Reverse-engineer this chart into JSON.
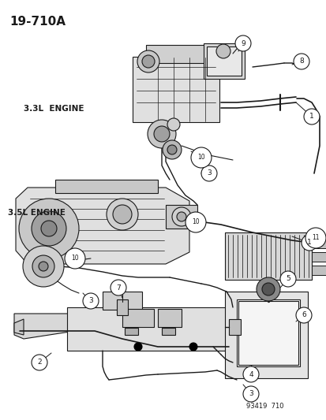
{
  "title": "19-710A",
  "bg_color": "#ffffff",
  "label_33L": "3.3L  ENGINE",
  "label_35L": "3.5L ENGINE",
  "footer": "93419  710",
  "fig_width": 4.14,
  "fig_height": 5.33,
  "dpi": 100
}
